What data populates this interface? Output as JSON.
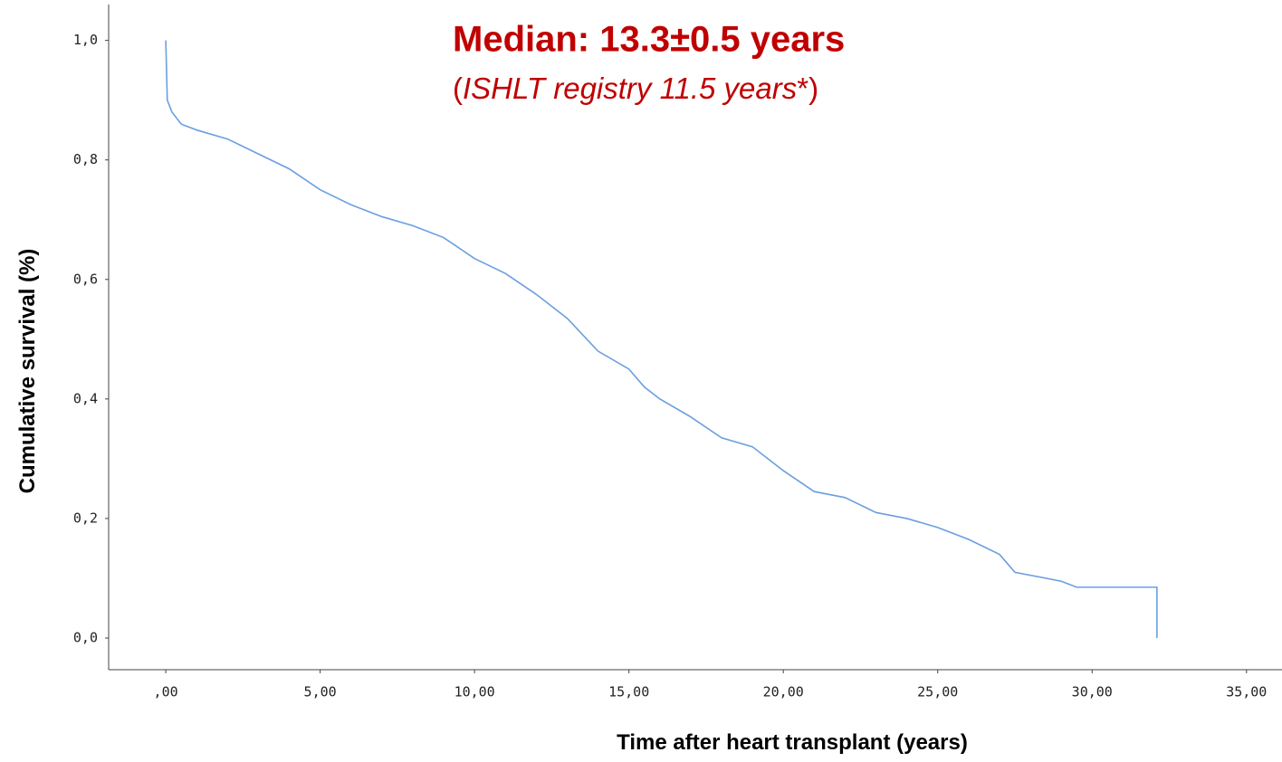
{
  "chart_data": {
    "type": "line",
    "annotations": [
      "Median: 13.3±0.5 years",
      "(",
      "ISHLT registry 11.5 years",
      "*)"
    ],
    "xlabel": "Time after heart transplant (years)",
    "ylabel": "Cumulative survival (%)",
    "xlim": [
      -1.85,
      36.15
    ],
    "ylim": [
      -0.053,
      1.06
    ],
    "xticks": [
      {
        "value": 0,
        "label": ",00"
      },
      {
        "value": 5,
        "label": "5,00"
      },
      {
        "value": 10,
        "label": "10,00"
      },
      {
        "value": 15,
        "label": "15,00"
      },
      {
        "value": 20,
        "label": "20,00"
      },
      {
        "value": 25,
        "label": "25,00"
      },
      {
        "value": 30,
        "label": "30,00"
      },
      {
        "value": 35,
        "label": "35,00"
      }
    ],
    "yticks": [
      {
        "value": 0,
        "label": "0,0"
      },
      {
        "value": 0.2,
        "label": "0,2"
      },
      {
        "value": 0.4,
        "label": "0,4"
      },
      {
        "value": 0.6,
        "label": "0,6"
      },
      {
        "value": 0.8,
        "label": "0,8"
      },
      {
        "value": 1,
        "label": "1,0"
      }
    ],
    "series": [
      {
        "color": "#6a9fe0",
        "x": [
          0,
          0.05,
          0.2,
          0.5,
          1,
          2,
          3,
          4,
          5,
          6,
          7,
          8,
          9,
          10,
          11,
          12,
          13,
          14,
          15,
          15.5,
          16,
          17,
          18,
          19,
          20,
          21,
          22,
          23,
          24,
          25,
          26,
          27,
          27.5,
          29,
          29.5,
          32.1,
          32.1
        ],
        "values": [
          1.0,
          0.9,
          0.88,
          0.86,
          0.85,
          0.835,
          0.81,
          0.785,
          0.75,
          0.725,
          0.705,
          0.69,
          0.67,
          0.635,
          0.61,
          0.575,
          0.535,
          0.48,
          0.45,
          0.42,
          0.4,
          0.37,
          0.335,
          0.32,
          0.28,
          0.245,
          0.235,
          0.21,
          0.2,
          0.185,
          0.165,
          0.14,
          0.11,
          0.095,
          0.085,
          0.085,
          0.0
        ]
      }
    ]
  }
}
